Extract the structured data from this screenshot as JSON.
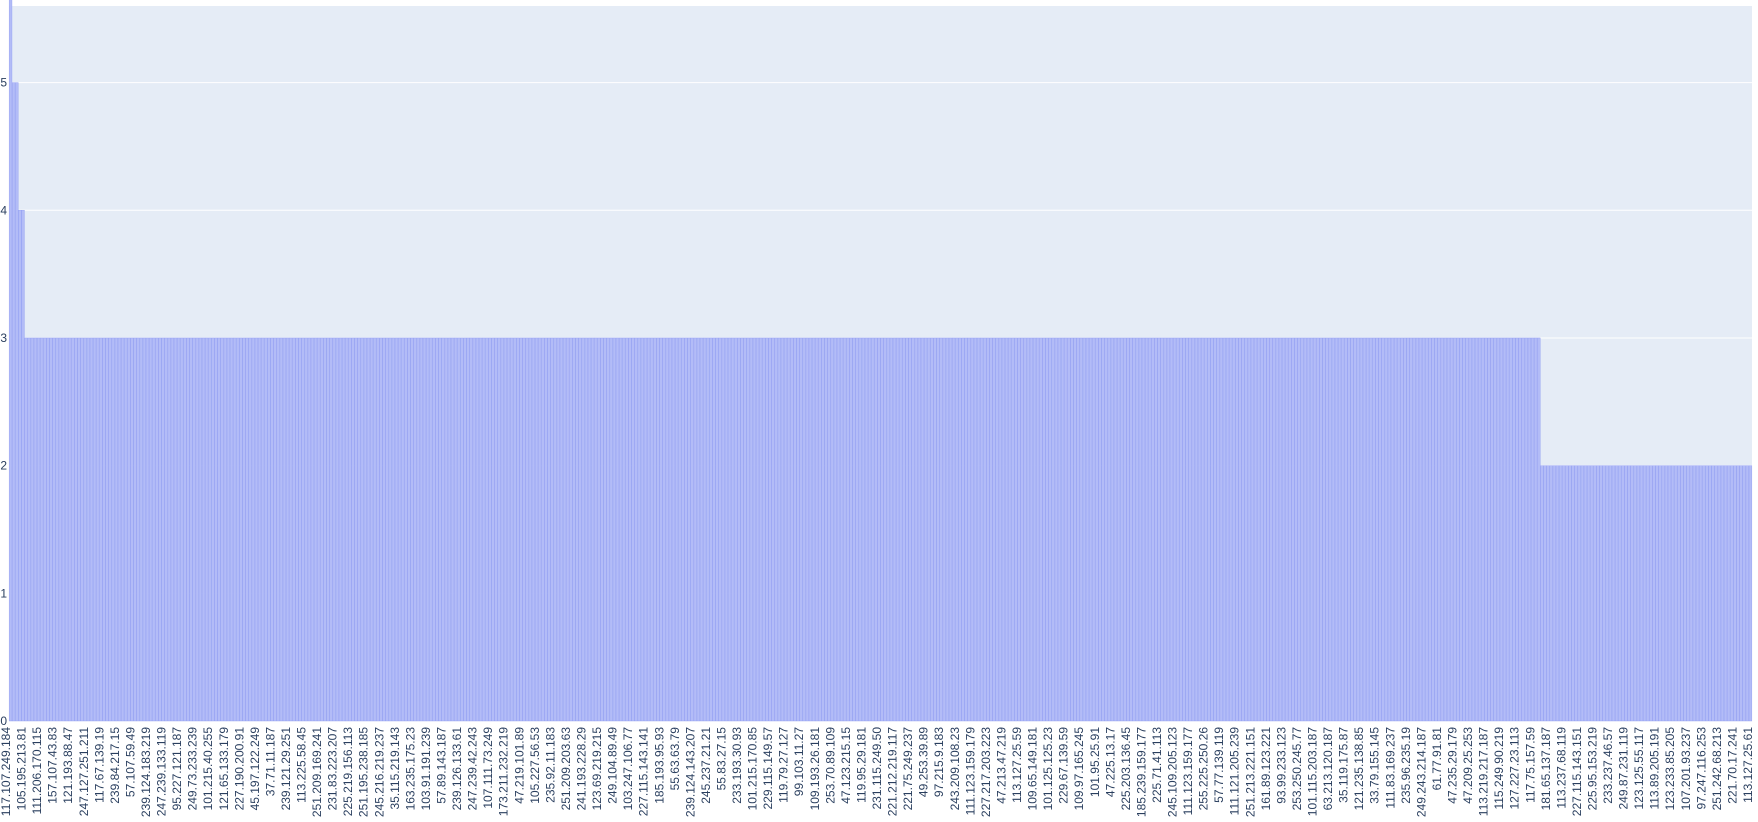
{
  "chart_data": {
    "type": "bar",
    "title": "",
    "xlabel": "",
    "ylabel": "",
    "ylim": [
      0,
      5.6
    ],
    "yticks": [
      0,
      1,
      2,
      3,
      4,
      5
    ],
    "grid": true,
    "legend": "none",
    "colors": {
      "bar_fill": "#b3bcf7",
      "bar_stroke": "#8f9cf2",
      "plot_bg": "#e5ecf6",
      "grid": "#ffffff",
      "text": "#2a3f5f"
    },
    "segments": [
      {
        "count": 1,
        "value": 6
      },
      {
        "count": 2,
        "value": 5
      },
      {
        "count": 2,
        "value": 4
      },
      {
        "count": 487,
        "value": 3
      },
      {
        "count": 68,
        "value": 2
      }
    ],
    "tick_labels": [
      "117.107.249.184",
      "105.195.213.81",
      "111.206.170.115",
      "157.107.43.83",
      "121.193.88.47",
      "247.127.251.211",
      "117.67.139.19",
      "239.84.217.15",
      "57.107.59.49",
      "239.124.183.219",
      "247.239.133.119",
      "95.227.121.187",
      "249.73.233.239",
      "101.215.40.255",
      "121.65.133.179",
      "227.190.200.91",
      "45.197.122.249",
      "37.71.11.187",
      "239.121.29.251",
      "113.225.58.45",
      "251.209.169.241",
      "231.83.223.207",
      "225.219.156.113",
      "251.195.238.185",
      "245.216.219.237",
      "35.115.219.143",
      "163.235.175.23",
      "103.91.191.239",
      "57.89.143.187",
      "239.126.133.61",
      "247.239.42.243",
      "107.111.73.249",
      "173.211.232.219",
      "47.219.101.89",
      "105.227.56.53",
      "235.92.11.183",
      "251.209.203.63",
      "241.193.228.29",
      "123.69.219.215",
      "249.104.89.49",
      "103.247.106.77",
      "227.115.143.141",
      "185.193.95.93",
      "55.63.63.79",
      "239.124.143.207",
      "245.237.21.21",
      "55.83.27.15",
      "233.193.30.93",
      "101.215.170.85",
      "229.115.149.57",
      "119.79.27.127",
      "99.103.11.27",
      "109.193.26.181",
      "253.70.89.109",
      "47.123.215.15",
      "119.95.29.181",
      "231.115.249.50",
      "221.212.219.117",
      "221.75.249.237",
      "49.253.39.89",
      "97.215.9.183",
      "243.209.108.23",
      "111.123.159.179",
      "227.217.203.223",
      "47.213.47.219",
      "113.127.25.59",
      "109.65.149.181",
      "101.125.125.23",
      "229.67.139.59",
      "109.97.165.245",
      "101.95.25.91",
      "47.225.13.17",
      "225.203.136.45",
      "185.239.159.177",
      "225.71.41.113",
      "245.109.205.123",
      "111.123.159.177",
      "255.225.250.26",
      "57.77.139.119",
      "111.121.205.239",
      "251.213.221.151",
      "161.89.123.221",
      "93.99.233.123",
      "253.250.245.77",
      "101.115.203.187",
      "63.213.120.187",
      "35.119.175.87",
      "121.235.138.85",
      "33.79.155.145",
      "111.83.169.237",
      "235.96.235.19",
      "249.243.214.187",
      "61.77.91.81",
      "47.235.29.179",
      "47.209.25.253",
      "113.219.217.187",
      "115.249.90.219",
      "127.227.23.113",
      "117.75.157.59",
      "181.65.137.187",
      "113.237.68.119",
      "227.115.143.151",
      "225.95.153.219",
      "233.237.46.57",
      "249.87.231.119",
      "123.125.55.117",
      "113.89.205.191",
      "123.233.85.205",
      "107.201.93.237",
      "97.247.116.253",
      "251.242.68.213",
      "221.70.17.241",
      "113.127.25.61"
    ]
  }
}
